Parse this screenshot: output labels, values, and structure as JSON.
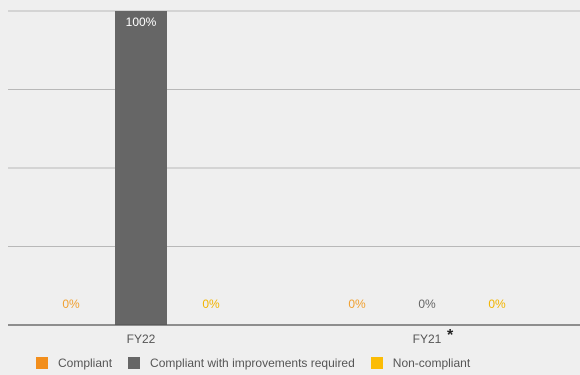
{
  "chart_data": {
    "type": "bar",
    "categories": [
      "FY22",
      "FY21"
    ],
    "category_notes": [
      "",
      "*"
    ],
    "series": [
      {
        "name": "Compliant",
        "color": "#f28e1c",
        "values": [
          0,
          0
        ],
        "labels": [
          "0%",
          "0%"
        ],
        "label_color": "#f0a030"
      },
      {
        "name": "Compliant with improvements required",
        "color": "#666666",
        "values": [
          100,
          0
        ],
        "labels": [
          "100%",
          "0%"
        ],
        "label_color": "#666666"
      },
      {
        "name": "Non-compliant",
        "color": "#fbbc05",
        "values": [
          0,
          0
        ],
        "labels": [
          "0%",
          "0%"
        ],
        "label_color": "#f2b400"
      }
    ],
    "ylim": [
      0,
      100
    ],
    "grid": true,
    "legend": "bottom"
  }
}
